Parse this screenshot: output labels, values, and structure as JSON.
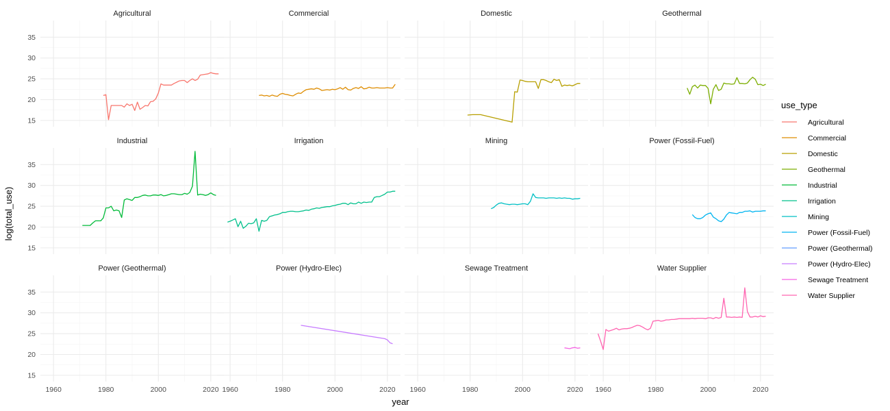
{
  "chart_data": {
    "type": "line",
    "facet_layout": "4 columns x 3 rows",
    "xlabel": "year",
    "ylabel": "log(total_use)",
    "xlim": [
      1955,
      2025
    ],
    "ylim": [
      13.5,
      39
    ],
    "x_ticks": [
      1960,
      1980,
      2000,
      2020
    ],
    "y_ticks": [
      15,
      20,
      25,
      30,
      35
    ],
    "grid": true,
    "legend": {
      "title": "use_type",
      "position": "right"
    },
    "series": [
      {
        "name": "Agricultural",
        "color": "#F8766D",
        "x": [
          1979,
          1980,
          1981,
          1982,
          1983,
          1984,
          1985,
          1986,
          1987,
          1988,
          1989,
          1990,
          1991,
          1992,
          1993,
          1994,
          1995,
          1996,
          1997,
          1998,
          1999,
          2000,
          2001,
          2002,
          2003,
          2004,
          2005,
          2006,
          2007,
          2008,
          2009,
          2010,
          2011,
          2012,
          2013,
          2014,
          2015,
          2016,
          2017,
          2018,
          2019,
          2020,
          2021,
          2022,
          2023
        ],
        "y": [
          21.0,
          21.2,
          15.2,
          18.6,
          18.6,
          18.6,
          18.6,
          18.6,
          18.2,
          19.0,
          18.6,
          18.9,
          17.4,
          19.4,
          17.7,
          18.1,
          18.6,
          18.5,
          19.5,
          19.6,
          20.2,
          21.6,
          23.8,
          23.5,
          23.5,
          23.5,
          23.5,
          23.9,
          24.2,
          24.5,
          24.6,
          24.6,
          24.1,
          24.6,
          25.0,
          24.6,
          24.9,
          25.9,
          26.0,
          26.1,
          26.2,
          26.5,
          26.3,
          26.2,
          26.2
        ]
      },
      {
        "name": "Commercial",
        "color": "#DE8C00",
        "x": [
          1971,
          1972,
          1973,
          1974,
          1975,
          1976,
          1977,
          1978,
          1979,
          1980,
          1981,
          1982,
          1983,
          1984,
          1985,
          1986,
          1987,
          1988,
          1989,
          1990,
          1991,
          1992,
          1993,
          1994,
          1995,
          1996,
          1997,
          1998,
          1999,
          2000,
          2001,
          2002,
          2003,
          2004,
          2005,
          2006,
          2007,
          2008,
          2009,
          2010,
          2011,
          2012,
          2013,
          2014,
          2015,
          2016,
          2017,
          2018,
          2019,
          2020,
          2021,
          2022,
          2023
        ],
        "y": [
          21.0,
          21.1,
          20.9,
          21.0,
          20.8,
          21.1,
          20.9,
          20.8,
          21.3,
          21.5,
          21.3,
          21.2,
          21.0,
          20.9,
          21.3,
          21.6,
          21.5,
          22.0,
          22.4,
          22.5,
          22.6,
          22.5,
          22.8,
          22.6,
          22.2,
          22.3,
          22.4,
          22.3,
          22.5,
          22.4,
          22.6,
          22.9,
          22.5,
          23.0,
          22.4,
          22.3,
          22.7,
          22.9,
          22.7,
          23.1,
          22.6,
          22.7,
          23.0,
          22.8,
          22.8,
          22.9,
          22.8,
          22.8,
          22.8,
          22.9,
          22.8,
          22.8,
          23.7
        ]
      },
      {
        "name": "Domestic",
        "color": "#B79F00",
        "x": [
          1979,
          1981,
          1984,
          1996,
          1997,
          1998,
          1999,
          2000,
          2001,
          2002,
          2003,
          2004,
          2005,
          2006,
          2007,
          2008,
          2009,
          2010,
          2011,
          2012,
          2013,
          2014,
          2015,
          2016,
          2017,
          2018,
          2019,
          2020,
          2021,
          2022
        ],
        "y": [
          16.3,
          16.4,
          16.4,
          14.6,
          21.9,
          21.8,
          24.7,
          24.6,
          24.4,
          24.3,
          24.3,
          24.3,
          24.3,
          22.7,
          24.8,
          24.8,
          24.6,
          24.3,
          24.1,
          24.9,
          24.6,
          24.8,
          23.2,
          23.5,
          23.4,
          23.5,
          23.3,
          23.6,
          23.9,
          23.9
        ]
      },
      {
        "name": "Geothermal",
        "color": "#7CAE00",
        "x": [
          1992,
          1993,
          1994,
          1995,
          1996,
          1997,
          1998,
          1999,
          2000,
          2001,
          2002,
          2003,
          2004,
          2005,
          2006,
          2007,
          2008,
          2009,
          2010,
          2011,
          2012,
          2013,
          2014,
          2015,
          2016,
          2017,
          2018,
          2019,
          2020,
          2021,
          2022
        ],
        "y": [
          22.8,
          21.3,
          23.1,
          23.5,
          22.8,
          23.5,
          23.4,
          23.4,
          22.7,
          19.0,
          22.5,
          23.6,
          22.2,
          22.5,
          24.0,
          23.8,
          23.8,
          23.7,
          23.8,
          25.3,
          23.9,
          23.9,
          23.8,
          24.0,
          24.8,
          25.4,
          24.9,
          23.6,
          23.7,
          23.4,
          23.7
        ]
      },
      {
        "name": "Industrial",
        "color": "#00BA38",
        "x": [
          1971,
          1972,
          1973,
          1974,
          1975,
          1976,
          1977,
          1978,
          1979,
          1980,
          1981,
          1982,
          1983,
          1984,
          1985,
          1986,
          1987,
          1988,
          1989,
          1990,
          1991,
          1992,
          1993,
          1994,
          1995,
          1996,
          1997,
          1998,
          1999,
          2000,
          2001,
          2002,
          2003,
          2004,
          2005,
          2006,
          2007,
          2008,
          2009,
          2010,
          2011,
          2012,
          2013,
          2014,
          2015,
          2016,
          2017,
          2018,
          2019,
          2020,
          2021,
          2022
        ],
        "y": [
          20.4,
          20.4,
          20.4,
          20.4,
          21.0,
          21.5,
          21.5,
          21.5,
          22.2,
          24.6,
          24.6,
          25.0,
          23.9,
          24.1,
          23.9,
          22.3,
          26.5,
          26.8,
          26.6,
          26.4,
          27.1,
          27.1,
          27.3,
          27.6,
          27.7,
          27.5,
          27.5,
          27.7,
          27.7,
          27.6,
          27.8,
          27.5,
          27.6,
          27.8,
          28.0,
          28.0,
          27.9,
          27.8,
          27.8,
          28.1,
          27.9,
          28.3,
          29.8,
          38.2,
          27.7,
          27.9,
          27.8,
          27.6,
          27.8,
          28.2,
          27.8,
          27.6
        ]
      },
      {
        "name": "Irrigation",
        "color": "#00C08B",
        "x": [
          1959,
          1960,
          1961,
          1962,
          1963,
          1964,
          1965,
          1966,
          1967,
          1968,
          1969,
          1970,
          1971,
          1972,
          1973,
          1974,
          1975,
          1976,
          1977,
          1978,
          1979,
          1980,
          1981,
          1982,
          1983,
          1984,
          1985,
          1986,
          1987,
          1988,
          1989,
          1990,
          1991,
          1992,
          1993,
          1994,
          1995,
          1996,
          1997,
          1998,
          1999,
          2000,
          2001,
          2002,
          2003,
          2004,
          2005,
          2006,
          2007,
          2008,
          2009,
          2010,
          2011,
          2012,
          2013,
          2014,
          2015,
          2016,
          2017,
          2018,
          2019,
          2020,
          2021,
          2022,
          2023
        ],
        "y": [
          21.2,
          21.4,
          21.7,
          22.0,
          20.1,
          21.4,
          19.7,
          20.2,
          20.9,
          20.8,
          21.0,
          22.0,
          19.0,
          21.6,
          21.4,
          21.6,
          22.5,
          22.7,
          22.9,
          23.0,
          23.2,
          23.5,
          23.5,
          23.7,
          23.8,
          23.8,
          23.7,
          23.7,
          23.8,
          23.9,
          24.1,
          24.0,
          24.3,
          24.4,
          24.6,
          24.5,
          24.7,
          24.8,
          24.9,
          24.9,
          25.1,
          25.2,
          25.4,
          25.5,
          25.7,
          25.7,
          25.4,
          25.8,
          25.6,
          25.6,
          26.0,
          25.7,
          26.0,
          25.9,
          26.0,
          26.0,
          27.1,
          27.3,
          27.3,
          27.6,
          27.9,
          28.4,
          28.4,
          28.6,
          28.6
        ]
      },
      {
        "name": "Mining",
        "color": "#00BFC4",
        "x": [
          1988,
          1989,
          1990,
          1991,
          1992,
          1993,
          1994,
          1995,
          1996,
          1997,
          1998,
          1999,
          2000,
          2001,
          2002,
          2003,
          2004,
          2005,
          2006,
          2007,
          2008,
          2009,
          2010,
          2011,
          2012,
          2013,
          2014,
          2015,
          2016,
          2017,
          2018,
          2019,
          2020,
          2021,
          2022
        ],
        "y": [
          24.4,
          24.7,
          25.3,
          25.7,
          25.8,
          25.6,
          25.5,
          25.4,
          25.5,
          25.5,
          25.4,
          25.5,
          25.6,
          25.6,
          25.4,
          26.2,
          28.0,
          27.1,
          27.0,
          27.0,
          27.0,
          26.9,
          27.0,
          27.0,
          27.0,
          26.9,
          27.0,
          26.9,
          27.0,
          26.9,
          26.9,
          26.7,
          26.8,
          26.8,
          26.9
        ]
      },
      {
        "name": "Power (Fossil-Fuel)",
        "color": "#00B4F0",
        "x": [
          1994,
          1995,
          1996,
          1997,
          1998,
          1999,
          2000,
          2001,
          2002,
          2003,
          2004,
          2005,
          2006,
          2007,
          2008,
          2009,
          2010,
          2011,
          2012,
          2013,
          2014,
          2015,
          2016,
          2017,
          2018,
          2019,
          2020,
          2021,
          2022
        ],
        "y": [
          23.0,
          22.3,
          22.0,
          22.0,
          22.3,
          22.9,
          23.2,
          23.4,
          22.4,
          22.0,
          21.5,
          21.3,
          21.9,
          22.9,
          23.5,
          23.4,
          23.3,
          23.2,
          23.5,
          23.5,
          23.8,
          23.8,
          23.9,
          23.6,
          23.8,
          23.8,
          23.8,
          23.9,
          23.9
        ]
      },
      {
        "name": "Power (Geothermal)",
        "color": "#619CFF",
        "x": [],
        "y": []
      },
      {
        "name": "Power (Hydro-Elec)",
        "color": "#C77CFF",
        "x": [
          1987,
          2019,
          2020,
          2021,
          2022
        ],
        "y": [
          27.0,
          23.8,
          23.5,
          22.8,
          22.6
        ]
      },
      {
        "name": "Sewage Treatment",
        "color": "#F564E3",
        "x": [
          2016,
          2017,
          2018,
          2019,
          2020,
          2021,
          2022
        ],
        "y": [
          21.6,
          21.5,
          21.4,
          21.6,
          21.7,
          21.5,
          21.6
        ]
      },
      {
        "name": "Water Supplier",
        "color": "#FF64B0",
        "x": [
          1958,
          1959,
          1960,
          1961,
          1962,
          1963,
          1964,
          1965,
          1966,
          1967,
          1968,
          1969,
          1970,
          1971,
          1972,
          1973,
          1974,
          1975,
          1976,
          1977,
          1978,
          1979,
          1980,
          1981,
          1982,
          1983,
          1984,
          1985,
          1986,
          1987,
          1988,
          1989,
          1990,
          1991,
          1992,
          1993,
          1994,
          1995,
          1996,
          1997,
          1998,
          1999,
          2000,
          2001,
          2002,
          2003,
          2004,
          2005,
          2006,
          2007,
          2008,
          2009,
          2010,
          2011,
          2012,
          2013,
          2014,
          2015,
          2016,
          2017,
          2018,
          2019,
          2020,
          2021,
          2022
        ],
        "y": [
          25.0,
          23.2,
          21.2,
          26.0,
          25.6,
          25.8,
          26.0,
          26.3,
          25.9,
          26.1,
          26.2,
          26.2,
          26.3,
          26.5,
          26.8,
          27.0,
          26.9,
          26.6,
          26.2,
          25.9,
          26.3,
          28.0,
          28.1,
          28.2,
          28.0,
          28.1,
          28.3,
          28.3,
          28.4,
          28.4,
          28.5,
          28.6,
          28.6,
          28.6,
          28.6,
          28.6,
          28.7,
          28.6,
          28.7,
          28.7,
          28.7,
          28.6,
          28.8,
          28.8,
          28.6,
          28.9,
          28.7,
          28.9,
          33.5,
          29.0,
          29.0,
          28.9,
          29.0,
          28.9,
          29.0,
          28.9,
          36.0,
          30.3,
          29.0,
          29.0,
          29.2,
          29.0,
          29.3,
          29.1,
          29.2
        ]
      }
    ]
  }
}
